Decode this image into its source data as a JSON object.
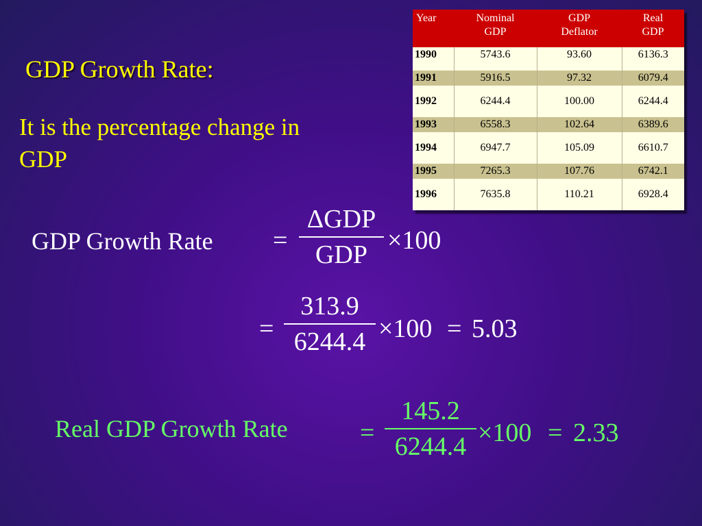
{
  "title": "GDP Growth Rate:",
  "intro_line1": "It is the percentage change in",
  "intro_line2": "GDP",
  "table": {
    "headers": [
      {
        "l1": "Year",
        "l2": ""
      },
      {
        "l1": "Nominal",
        "l2": "GDP"
      },
      {
        "l1": "GDP",
        "l2": "Deflator"
      },
      {
        "l1": "Real",
        "l2": "GDP"
      }
    ],
    "rows": [
      {
        "year": "1990",
        "nominal": "5743.6",
        "deflator": "93.60",
        "real": "6136.3"
      },
      {
        "year": "1991",
        "nominal": "5916.5",
        "deflator": "97.32",
        "real": "6079.4"
      },
      {
        "year": "1992",
        "nominal": "6244.4",
        "deflator": "100.00",
        "real": "6244.4"
      },
      {
        "year": "1993",
        "nominal": "6558.3",
        "deflator": "102.64",
        "real": "6389.6"
      },
      {
        "year": "1994",
        "nominal": "6947.7",
        "deflator": "105.09",
        "real": "6610.7"
      },
      {
        "year": "1995",
        "nominal": "7265.3",
        "deflator": "107.76",
        "real": "6742.1"
      },
      {
        "year": "1996",
        "nominal": "7635.8",
        "deflator": "110.21",
        "real": "6928.4"
      }
    ]
  },
  "formula1": {
    "label": "GDP Growth Rate",
    "equals": "=",
    "numerator": "ΔGDP",
    "denominator": "GDP",
    "multiplier": "×100"
  },
  "formula2": {
    "equals": "=",
    "numerator": "313.9",
    "denominator": "6244.4",
    "multiplier": "×100",
    "equals2": "=",
    "result": "5.03"
  },
  "formula3": {
    "label": "Real GDP Growth Rate",
    "equals": "=",
    "numerator": "145.2",
    "denominator": "6244.4",
    "multiplier": "×100",
    "equals2": "=",
    "result": "2.33"
  },
  "colors": {
    "title": "#ffff00",
    "header_bg": "#cc0000",
    "row_light": "#ffffe6",
    "row_dark": "#c9c18f",
    "formula_white": "#ffffff",
    "formula_green": "#66ff66"
  }
}
